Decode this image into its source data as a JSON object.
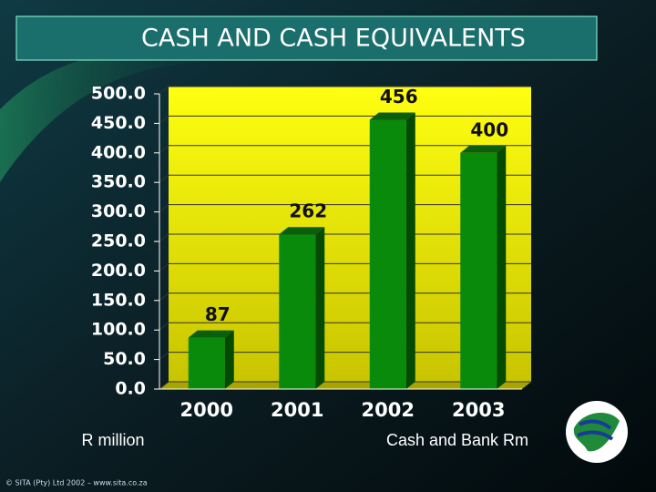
{
  "chart_data": {
    "type": "bar3d",
    "title": "CASH AND CASH EQUIVALENTS",
    "categories": [
      "2000",
      "2001",
      "2002",
      "2003"
    ],
    "values": [
      87,
      262,
      456,
      400
    ],
    "color": "#0a8a0a",
    "ylim": [
      0,
      500
    ],
    "yticks": [
      {
        "value": 0,
        "label": "0.0"
      },
      {
        "value": 50,
        "label": "50.0"
      },
      {
        "value": 100,
        "label": "100.0"
      },
      {
        "value": 150,
        "label": "150.0"
      },
      {
        "value": 200,
        "label": "200.0"
      },
      {
        "value": 250,
        "label": "250.0"
      },
      {
        "value": 300,
        "label": "300.0"
      },
      {
        "value": 350,
        "label": "350.0"
      },
      {
        "value": 400,
        "label": "400.0"
      },
      {
        "value": 450,
        "label": "450.0"
      },
      {
        "value": 500,
        "label": "500.0"
      }
    ],
    "grid": true,
    "y_label": "R million",
    "x_label": "Cash and Bank Rm"
  },
  "footer": "© SITA (Pty) Ltd 2002 – www.sita.co.za"
}
